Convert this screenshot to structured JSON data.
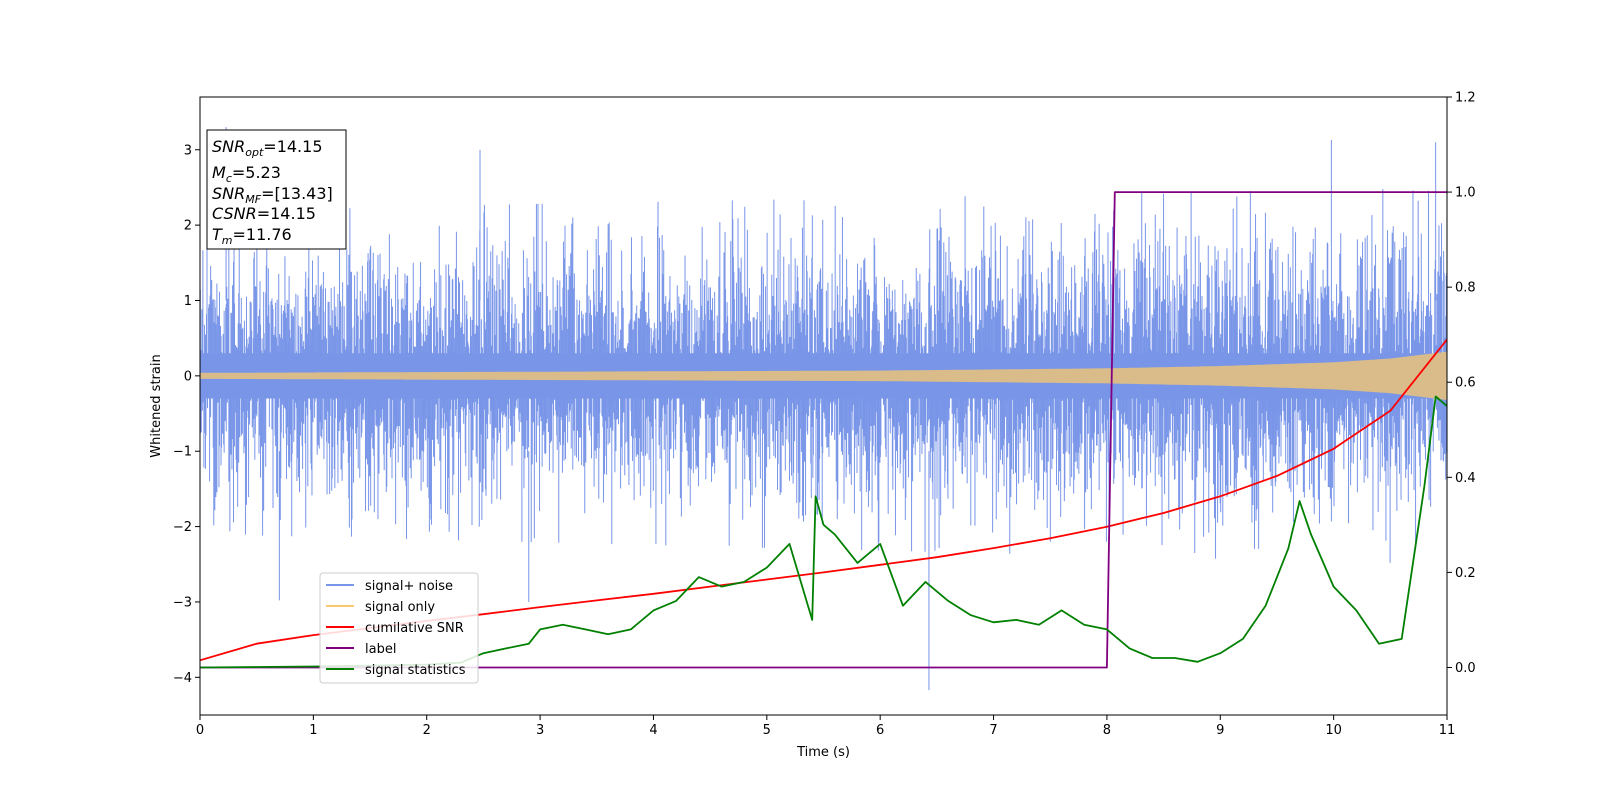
{
  "chart_data": {
    "type": "line",
    "xlabel": "Time (s)",
    "ylabel": "Whitened strain",
    "xlim": [
      0,
      11
    ],
    "ylim": [
      -4.5,
      3.7
    ],
    "y2lim": [
      -0.1,
      1.2
    ],
    "xticks": [
      0,
      1,
      2,
      3,
      4,
      5,
      6,
      7,
      8,
      9,
      10,
      11
    ],
    "yticks": [
      -4,
      -3,
      -2,
      -1,
      0,
      1,
      2,
      3
    ],
    "y2ticks": [
      0.0,
      0.2,
      0.4,
      0.6,
      0.8,
      1.0,
      1.2
    ],
    "legend_position": "lower-left",
    "grid": false,
    "annotation": {
      "lines": [
        {
          "symbol": "SNR",
          "sub": "opt",
          "value": "=14.15"
        },
        {
          "symbol": "M",
          "sub": "c",
          "value": "=5.23"
        },
        {
          "symbol": "SNR",
          "sub": "MF",
          "value": "=[13.43]"
        },
        {
          "symbol": "CSNR",
          "sub": "",
          "value": "=14.15"
        },
        {
          "symbol": "T",
          "sub": "m",
          "value": "=11.76"
        }
      ]
    },
    "series": [
      {
        "name": "signal+ noise",
        "axis": "left",
        "color": "#7895e8",
        "style": "noise",
        "envelope_x": [
          0,
          11
        ],
        "envelope_min": [
          -2.1,
          -2.5
        ],
        "envelope_max": [
          2.2,
          2.5
        ],
        "extreme_spikes": [
          [
            0.23,
            3.3
          ],
          [
            0.7,
            -2.98
          ],
          [
            2.47,
            3.0
          ],
          [
            2.9,
            -3.0
          ],
          [
            6.43,
            -4.17
          ],
          [
            9.98,
            3.13
          ],
          [
            10.9,
            3.1
          ],
          [
            11.0,
            -2.6
          ]
        ]
      },
      {
        "name": "signal only",
        "axis": "left",
        "color": "#fbc96b",
        "style": "chirp",
        "amp_x": [
          0,
          2,
          4,
          6,
          8,
          9,
          10,
          10.5,
          11
        ],
        "amp": [
          0.04,
          0.05,
          0.06,
          0.07,
          0.1,
          0.13,
          0.18,
          0.23,
          0.32
        ]
      },
      {
        "name": "cumilative SNR",
        "axis": "right",
        "color": "#ff0000",
        "x": [
          0,
          0.5,
          1,
          1.5,
          2,
          2.5,
          3,
          3.5,
          4,
          4.5,
          5,
          5.5,
          6,
          6.5,
          7,
          7.5,
          8,
          8.5,
          9,
          9.5,
          10,
          10.5,
          11
        ],
        "values": [
          0.015,
          0.05,
          0.068,
          0.083,
          0.098,
          0.112,
          0.127,
          0.141,
          0.155,
          0.17,
          0.185,
          0.2,
          0.216,
          0.232,
          0.251,
          0.272,
          0.296,
          0.325,
          0.36,
          0.403,
          0.46,
          0.54,
          0.69
        ]
      },
      {
        "name": "label",
        "axis": "right",
        "color": "#800080",
        "x": [
          0,
          8.0,
          8.07,
          11
        ],
        "values": [
          0.0,
          0.0,
          1.0,
          1.0
        ]
      },
      {
        "name": "signal statistics",
        "axis": "right",
        "color": "#008000",
        "x": [
          0,
          0.5,
          1,
          1.5,
          2,
          2.3,
          2.5,
          2.7,
          2.9,
          3.0,
          3.2,
          3.4,
          3.6,
          3.8,
          4.0,
          4.2,
          4.4,
          4.6,
          4.8,
          5.0,
          5.2,
          5.4,
          5.43,
          5.5,
          5.6,
          5.8,
          6.0,
          6.2,
          6.4,
          6.6,
          6.8,
          7.0,
          7.2,
          7.4,
          7.6,
          7.8,
          8.0,
          8.2,
          8.4,
          8.6,
          8.8,
          9.0,
          9.2,
          9.4,
          9.6,
          9.7,
          9.8,
          10.0,
          10.2,
          10.4,
          10.6,
          10.8,
          10.9,
          11.0
        ],
        "values": [
          0.0,
          0.001,
          0.002,
          0.004,
          0.006,
          0.01,
          0.03,
          0.04,
          0.05,
          0.08,
          0.09,
          0.08,
          0.07,
          0.08,
          0.12,
          0.14,
          0.19,
          0.17,
          0.18,
          0.21,
          0.26,
          0.1,
          0.36,
          0.3,
          0.28,
          0.22,
          0.26,
          0.13,
          0.18,
          0.14,
          0.11,
          0.095,
          0.1,
          0.09,
          0.12,
          0.09,
          0.08,
          0.04,
          0.02,
          0.02,
          0.012,
          0.03,
          0.06,
          0.13,
          0.25,
          0.35,
          0.28,
          0.17,
          0.12,
          0.05,
          0.06,
          0.38,
          0.57,
          0.55
        ]
      }
    ]
  }
}
